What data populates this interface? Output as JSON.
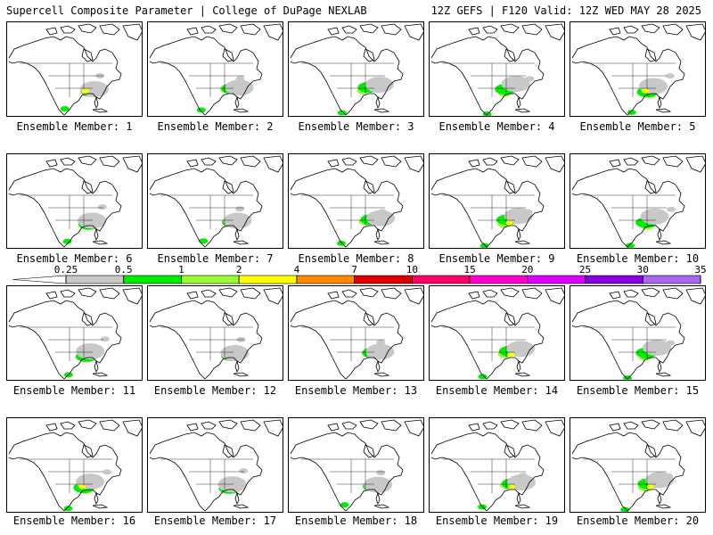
{
  "header": {
    "left": "Supercell Composite Parameter | College of DuPage NEXLAB",
    "right": "12Z GEFS | F120 Valid: 12Z WED MAY 28 2025"
  },
  "colorbar": {
    "labels": [
      "0.25",
      "0.5",
      "1",
      "2",
      "4",
      "7",
      "10",
      "15",
      "20",
      "25",
      "30",
      "35"
    ],
    "colors": [
      "#ffffff",
      "#c8c8c8",
      "#00ee00",
      "#99ff33",
      "#ffff00",
      "#ff8800",
      "#dd0000",
      "#ff0066",
      "#ff00cc",
      "#dd00ff",
      "#8800dd",
      "#aa66ee",
      "#00dddd"
    ]
  },
  "map": {
    "land_color": "#ffffff",
    "coast_color": "#000000",
    "highlight_colors": {
      "gray": "#c8c8c8",
      "green": "#00ee00",
      "light_green": "#99ff33",
      "yellow": "#ffff00"
    }
  },
  "members": [
    {
      "label": "Ensemble Member: 1",
      "intensity": 3
    },
    {
      "label": "Ensemble Member: 2",
      "intensity": 2
    },
    {
      "label": "Ensemble Member: 3",
      "intensity": 2
    },
    {
      "label": "Ensemble Member: 4",
      "intensity": 2
    },
    {
      "label": "Ensemble Member: 5",
      "intensity": 3
    },
    {
      "label": "Ensemble Member: 6",
      "intensity": 2
    },
    {
      "label": "Ensemble Member: 7",
      "intensity": 2
    },
    {
      "label": "Ensemble Member: 8",
      "intensity": 2
    },
    {
      "label": "Ensemble Member: 9",
      "intensity": 3
    },
    {
      "label": "Ensemble Member: 10",
      "intensity": 2
    },
    {
      "label": "Ensemble Member: 11",
      "intensity": 2
    },
    {
      "label": "Ensemble Member: 12",
      "intensity": 1
    },
    {
      "label": "Ensemble Member: 13",
      "intensity": 1
    },
    {
      "label": "Ensemble Member: 14",
      "intensity": 3
    },
    {
      "label": "Ensemble Member: 15",
      "intensity": 2
    },
    {
      "label": "Ensemble Member: 16",
      "intensity": 3
    },
    {
      "label": "Ensemble Member: 17",
      "intensity": 1
    },
    {
      "label": "Ensemble Member: 18",
      "intensity": 2
    },
    {
      "label": "Ensemble Member: 19",
      "intensity": 3
    },
    {
      "label": "Ensemble Member: 20",
      "intensity": 3
    }
  ]
}
